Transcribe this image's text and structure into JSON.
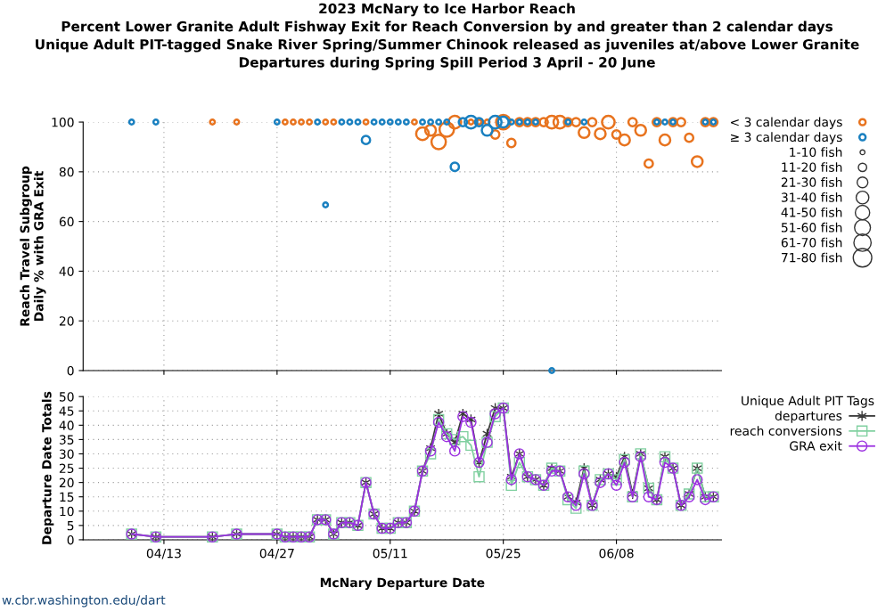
{
  "chart_data": [
    {
      "type": "bubble",
      "title": "2023 McNary to Ice Harbor Reach\nPercent Lower Granite Adult Fishway Exit for Reach Conversion by and greater than 2 calendar days\nUnique Adult PIT-tagged Snake River Spring/Summer Chinook released as juveniles at/above Lower Granite\nDepartures during Spring Spill Period 3 April - 20 June",
      "ylabel": "Reach Travel Subgroup\nDaily % with GRA Exit",
      "xlim": [
        "2023-04-03",
        "2023-06-21"
      ],
      "xticks": [
        {
          "value": "2023-04-13",
          "label": null
        },
        {
          "value": "2023-04-27",
          "label": null
        },
        {
          "value": "2023-05-11",
          "label": null
        },
        {
          "value": "2023-05-25",
          "label": null
        },
        {
          "value": "2023-06-08",
          "label": null
        }
      ],
      "ylim": [
        0,
        100
      ],
      "yticks": [
        0,
        20,
        40,
        60,
        80,
        100
      ],
      "tick_labels": "y",
      "grid": true,
      "legend": "top right",
      "size_legend": [
        {
          "value": 5,
          "label": "1-10 fish"
        },
        {
          "value": 15,
          "label": "11-20 fish"
        },
        {
          "value": 25,
          "label": "21-30 fish"
        },
        {
          "value": 35,
          "label": "31-40 fish"
        },
        {
          "value": 45,
          "label": "41-50 fish"
        },
        {
          "value": 55,
          "label": "51-60 fish"
        },
        {
          "value": 65,
          "label": "61-70 fish"
        },
        {
          "value": 75,
          "label": "71-80 fish"
        }
      ],
      "series": [
        {
          "name": "< 3 calendar days",
          "color": "#e8731e",
          "x": [
            "2023-04-19",
            "2023-04-22",
            "2023-04-28",
            "2023-04-29",
            "2023-04-30",
            "2023-05-01",
            "2023-05-03",
            "2023-05-04",
            "2023-05-08",
            "2023-05-14",
            "2023-05-15",
            "2023-05-16",
            "2023-05-17",
            "2023-05-18",
            "2023-05-19",
            "2023-05-21",
            "2023-05-22",
            "2023-05-23",
            "2023-05-24",
            "2023-05-25",
            "2023-05-26",
            "2023-05-27",
            "2023-05-28",
            "2023-05-29",
            "2023-05-30",
            "2023-05-31",
            "2023-06-01",
            "2023-06-02",
            "2023-06-03",
            "2023-06-04",
            "2023-06-05",
            "2023-06-06",
            "2023-06-07",
            "2023-06-08",
            "2023-06-09",
            "2023-06-10",
            "2023-06-11",
            "2023-06-12",
            "2023-06-13",
            "2023-06-14",
            "2023-06-15",
            "2023-06-16",
            "2023-06-17",
            "2023-06-18",
            "2023-06-19",
            "2023-06-20"
          ],
          "values": [
            100,
            100,
            100,
            100,
            100,
            100,
            100,
            100,
            100,
            100,
            95.3,
            96.7,
            92,
            97,
            100,
            100,
            100,
            100,
            95,
            100,
            91.6,
            100,
            100,
            100,
            100,
            100,
            100,
            100,
            100,
            95.8,
            100,
            95.3,
            100,
            95,
            92.8,
            100,
            96.7,
            83.3,
            100,
            92.8,
            100,
            100,
            93.7,
            84.1,
            100,
            100
          ],
          "sizes": [
            5,
            5,
            5,
            5,
            5,
            5,
            5,
            5,
            5,
            5,
            35,
            25,
            45,
            45,
            35,
            5,
            5,
            5,
            15,
            45,
            15,
            15,
            15,
            15,
            15,
            35,
            35,
            15,
            15,
            25,
            15,
            25,
            35,
            15,
            25,
            15,
            25,
            15,
            15,
            25,
            15,
            15,
            15,
            25,
            15,
            15
          ]
        },
        {
          "name": "≥ 3 calendar days",
          "color": "#1a80c0",
          "x": [
            "2023-04-09",
            "2023-04-12",
            "2023-04-27",
            "2023-05-02",
            "2023-05-03",
            "2023-05-05",
            "2023-05-06",
            "2023-05-07",
            "2023-05-08",
            "2023-05-09",
            "2023-05-10",
            "2023-05-11",
            "2023-05-12",
            "2023-05-13",
            "2023-05-15",
            "2023-05-16",
            "2023-05-17",
            "2023-05-18",
            "2023-05-19",
            "2023-05-20",
            "2023-05-21",
            "2023-05-22",
            "2023-05-23",
            "2023-05-24",
            "2023-05-25",
            "2023-05-26",
            "2023-05-27",
            "2023-05-28",
            "2023-05-29",
            "2023-05-31",
            "2023-06-02",
            "2023-06-04",
            "2023-06-13",
            "2023-06-14",
            "2023-06-15",
            "2023-06-19",
            "2023-06-20"
          ],
          "values": [
            100,
            100,
            100,
            100,
            66.7,
            100,
            100,
            100,
            92.8,
            100,
            100,
            100,
            100,
            100,
            100,
            100,
            100,
            100,
            82,
            100,
            100,
            100,
            96.7,
            100,
            100,
            100,
            100,
            100,
            100,
            0,
            100,
            100,
            100,
            100,
            100,
            100,
            100
          ],
          "sizes": [
            5,
            5,
            5,
            5,
            5,
            5,
            5,
            5,
            15,
            5,
            5,
            5,
            5,
            5,
            5,
            5,
            5,
            5,
            15,
            15,
            35,
            15,
            25,
            35,
            25,
            5,
            5,
            5,
            5,
            5,
            5,
            5,
            5,
            5,
            5,
            5,
            5
          ]
        }
      ]
    },
    {
      "type": "line",
      "xlabel": "McNary Departure Date",
      "ylabel": "Departure Date Totals",
      "legend_title": "Unique Adult PIT Tags",
      "annotations": [
        "w.cbr.washington.edu/dart"
      ],
      "xlim": [
        "2023-04-03",
        "2023-06-21"
      ],
      "xticks": [
        {
          "value": "2023-04-13",
          "label": "04/13"
        },
        {
          "value": "2023-04-27",
          "label": "04/27"
        },
        {
          "value": "2023-05-11",
          "label": "05/11"
        },
        {
          "value": "2023-05-25",
          "label": "05/25"
        },
        {
          "value": "2023-06-08",
          "label": "06/08"
        }
      ],
      "ylim": [
        0,
        50
      ],
      "yticks": [
        0,
        5,
        10,
        15,
        20,
        25,
        30,
        35,
        40,
        45,
        50
      ],
      "grid": true,
      "legend": "top right",
      "x": [
        "2023-04-09",
        "2023-04-12",
        "2023-04-19",
        "2023-04-22",
        "2023-04-27",
        "2023-04-28",
        "2023-04-29",
        "2023-04-30",
        "2023-05-01",
        "2023-05-02",
        "2023-05-03",
        "2023-05-04",
        "2023-05-05",
        "2023-05-06",
        "2023-05-07",
        "2023-05-08",
        "2023-05-09",
        "2023-05-10",
        "2023-05-11",
        "2023-05-12",
        "2023-05-13",
        "2023-05-14",
        "2023-05-15",
        "2023-05-16",
        "2023-05-17",
        "2023-05-18",
        "2023-05-19",
        "2023-05-20",
        "2023-05-21",
        "2023-05-22",
        "2023-05-23",
        "2023-05-24",
        "2023-05-25",
        "2023-05-26",
        "2023-05-27",
        "2023-05-28",
        "2023-05-29",
        "2023-05-30",
        "2023-05-31",
        "2023-06-01",
        "2023-06-02",
        "2023-06-03",
        "2023-06-04",
        "2023-06-05",
        "2023-06-06",
        "2023-06-07",
        "2023-06-08",
        "2023-06-09",
        "2023-06-10",
        "2023-06-11",
        "2023-06-12",
        "2023-06-13",
        "2023-06-14",
        "2023-06-15",
        "2023-06-16",
        "2023-06-17",
        "2023-06-18",
        "2023-06-19",
        "2023-06-20"
      ],
      "series": [
        {
          "name": "departures",
          "color": "#3a3a3a",
          "marker": "cross",
          "values": [
            2,
            1,
            1,
            2,
            2,
            1,
            1,
            1,
            1,
            7,
            7,
            2,
            6,
            6,
            5,
            20,
            9,
            4,
            4,
            6,
            6,
            10,
            24,
            32,
            44,
            37,
            34,
            44,
            42,
            27,
            37,
            46,
            46,
            22,
            30,
            22,
            21,
            19,
            25,
            24,
            15,
            13,
            25,
            12,
            21,
            23,
            22,
            29,
            16,
            30,
            18,
            14,
            29,
            25,
            12,
            16,
            25,
            15,
            15
          ]
        },
        {
          "name": "reach conversions",
          "color": "#80d0a0",
          "marker": "square",
          "values": [
            2,
            1,
            1,
            2,
            2,
            1,
            1,
            1,
            1,
            7,
            7,
            2,
            6,
            6,
            5,
            20,
            9,
            4,
            4,
            6,
            6,
            10,
            24,
            30,
            42,
            37,
            35,
            36,
            33,
            22,
            34,
            43,
            46,
            19,
            27,
            22,
            21,
            19,
            25,
            24,
            14,
            11,
            24,
            12,
            21,
            23,
            21,
            28,
            15,
            30,
            18,
            14,
            29,
            25,
            12,
            16,
            25,
            15,
            15
          ]
        },
        {
          "name": "GRA exit",
          "color": "#9b30e0",
          "marker": "circle",
          "values": [
            2,
            1,
            1,
            2,
            2,
            1,
            1,
            1,
            1,
            7,
            7,
            2,
            6,
            6,
            5,
            20,
            9,
            4,
            4,
            6,
            6,
            10,
            24,
            31,
            41,
            36,
            31,
            43,
            41,
            27,
            34,
            44,
            46,
            21,
            30,
            22,
            21,
            19,
            24,
            24,
            15,
            12,
            23,
            12,
            20,
            23,
            19,
            27,
            15,
            29,
            15,
            14,
            27,
            25,
            12,
            15,
            21,
            14,
            15
          ]
        }
      ]
    }
  ]
}
